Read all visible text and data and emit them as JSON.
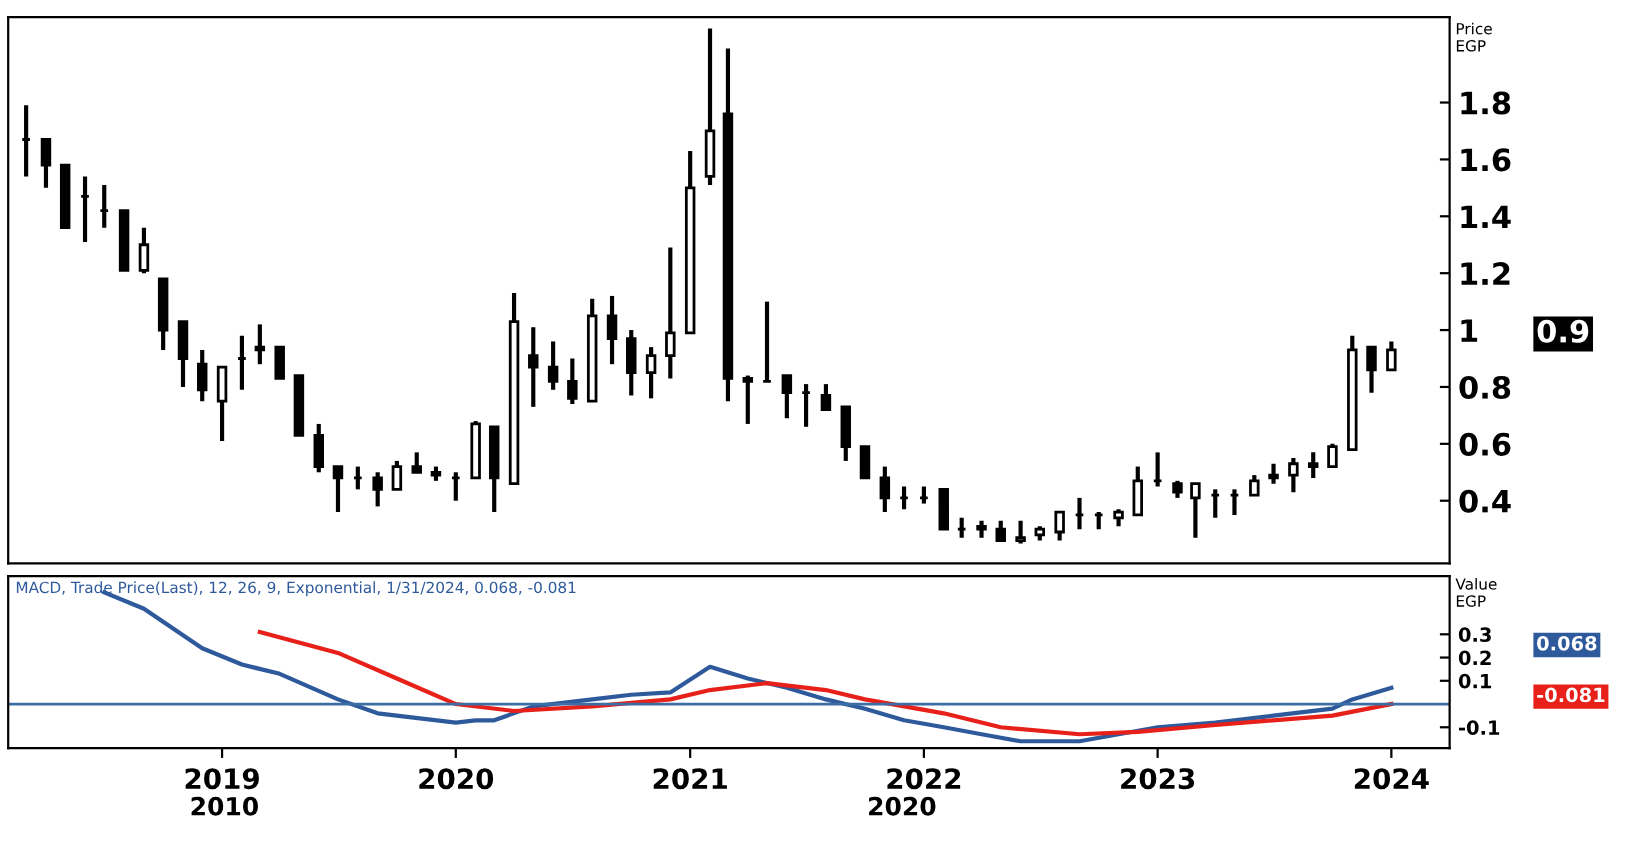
{
  "chart_data": [
    {
      "type": "candlestick",
      "ylabel": "Price EGP",
      "color": "#000000",
      "x": [
        "2018-03",
        "2018-04",
        "2018-05",
        "2018-06",
        "2018-07",
        "2018-08",
        "2018-09",
        "2018-10",
        "2018-11",
        "2018-12",
        "2019-01",
        "2019-02",
        "2019-03",
        "2019-04",
        "2019-05",
        "2019-06",
        "2019-07",
        "2019-08",
        "2019-09",
        "2019-10",
        "2019-11",
        "2019-12",
        "2020-01",
        "2020-02",
        "2020-03",
        "2020-04",
        "2020-05",
        "2020-06",
        "2020-07",
        "2020-08",
        "2020-09",
        "2020-10",
        "2020-11",
        "2020-12",
        "2021-01",
        "2021-02",
        "2021-03",
        "2021-04",
        "2021-05",
        "2021-06",
        "2021-07",
        "2021-08",
        "2021-09",
        "2021-10",
        "2021-11",
        "2021-12",
        "2022-01",
        "2022-02",
        "2022-03",
        "2022-04",
        "2022-05",
        "2022-06",
        "2022-07",
        "2022-08",
        "2022-09",
        "2022-10",
        "2022-11",
        "2022-12",
        "2023-01",
        "2023-02",
        "2023-03",
        "2023-04",
        "2023-05",
        "2023-06",
        "2023-07",
        "2023-08",
        "2023-09",
        "2023-10",
        "2023-11",
        "2023-12",
        "2024-01"
      ],
      "ohlc": [
        [
          1.67,
          1.79,
          1.54,
          1.67
        ],
        [
          1.67,
          1.67,
          1.5,
          1.58
        ],
        [
          1.58,
          1.58,
          1.36,
          1.36
        ],
        [
          1.47,
          1.54,
          1.31,
          1.47
        ],
        [
          1.42,
          1.51,
          1.36,
          1.42
        ],
        [
          1.42,
          1.42,
          1.21,
          1.21
        ],
        [
          1.21,
          1.36,
          1.2,
          1.3
        ],
        [
          1.18,
          1.18,
          0.93,
          1.0
        ],
        [
          1.03,
          1.03,
          0.8,
          0.9
        ],
        [
          0.88,
          0.93,
          0.75,
          0.79
        ],
        [
          0.75,
          0.87,
          0.61,
          0.87
        ],
        [
          0.9,
          0.98,
          0.79,
          0.9
        ],
        [
          0.93,
          1.02,
          0.88,
          0.94
        ],
        [
          0.94,
          0.94,
          0.83,
          0.83
        ],
        [
          0.84,
          0.84,
          0.63,
          0.63
        ],
        [
          0.63,
          0.67,
          0.5,
          0.52
        ],
        [
          0.52,
          0.52,
          0.36,
          0.48
        ],
        [
          0.48,
          0.52,
          0.44,
          0.48
        ],
        [
          0.48,
          0.5,
          0.38,
          0.44
        ],
        [
          0.44,
          0.54,
          0.44,
          0.52
        ],
        [
          0.52,
          0.57,
          0.5,
          0.5
        ],
        [
          0.5,
          0.52,
          0.47,
          0.49
        ],
        [
          0.48,
          0.5,
          0.4,
          0.48
        ],
        [
          0.48,
          0.68,
          0.48,
          0.67
        ],
        [
          0.66,
          0.66,
          0.36,
          0.48
        ],
        [
          0.46,
          1.13,
          0.46,
          1.03
        ],
        [
          0.91,
          1.01,
          0.73,
          0.87
        ],
        [
          0.87,
          0.96,
          0.79,
          0.82
        ],
        [
          0.82,
          0.9,
          0.74,
          0.76
        ],
        [
          0.75,
          1.11,
          0.75,
          1.05
        ],
        [
          1.05,
          1.12,
          0.88,
          0.97
        ],
        [
          0.97,
          1.0,
          0.77,
          0.85
        ],
        [
          0.85,
          0.94,
          0.76,
          0.91
        ],
        [
          0.91,
          1.29,
          0.83,
          0.99
        ],
        [
          0.99,
          1.63,
          0.99,
          1.5
        ],
        [
          1.54,
          2.06,
          1.51,
          1.7
        ],
        [
          1.76,
          1.99,
          0.75,
          0.83
        ],
        [
          0.83,
          0.84,
          0.67,
          0.82
        ],
        [
          0.82,
          1.1,
          0.82,
          0.82
        ],
        [
          0.84,
          0.84,
          0.69,
          0.78
        ],
        [
          0.78,
          0.81,
          0.66,
          0.78
        ],
        [
          0.77,
          0.81,
          0.72,
          0.72
        ],
        [
          0.73,
          0.73,
          0.54,
          0.59
        ],
        [
          0.59,
          0.59,
          0.48,
          0.48
        ],
        [
          0.48,
          0.52,
          0.36,
          0.41
        ],
        [
          0.41,
          0.45,
          0.37,
          0.41
        ],
        [
          0.41,
          0.45,
          0.39,
          0.41
        ],
        [
          0.44,
          0.44,
          0.3,
          0.3
        ],
        [
          0.3,
          0.34,
          0.27,
          0.3
        ],
        [
          0.3,
          0.33,
          0.27,
          0.31
        ],
        [
          0.3,
          0.33,
          0.26,
          0.26
        ],
        [
          0.26,
          0.33,
          0.25,
          0.27
        ],
        [
          0.28,
          0.31,
          0.26,
          0.3
        ],
        [
          0.29,
          0.36,
          0.26,
          0.36
        ],
        [
          0.35,
          0.41,
          0.3,
          0.35
        ],
        [
          0.35,
          0.36,
          0.3,
          0.35
        ],
        [
          0.34,
          0.37,
          0.31,
          0.36
        ],
        [
          0.35,
          0.52,
          0.35,
          0.47
        ],
        [
          0.47,
          0.57,
          0.45,
          0.47
        ],
        [
          0.46,
          0.47,
          0.41,
          0.43
        ],
        [
          0.41,
          0.46,
          0.27,
          0.46
        ],
        [
          0.42,
          0.44,
          0.34,
          0.42
        ],
        [
          0.42,
          0.44,
          0.35,
          0.42
        ],
        [
          0.42,
          0.49,
          0.42,
          0.47
        ],
        [
          0.48,
          0.53,
          0.46,
          0.49
        ],
        [
          0.49,
          0.55,
          0.43,
          0.53
        ],
        [
          0.53,
          0.57,
          0.48,
          0.52
        ],
        [
          0.52,
          0.6,
          0.52,
          0.59
        ],
        [
          0.58,
          0.98,
          0.58,
          0.93
        ],
        [
          0.94,
          0.94,
          0.78,
          0.86
        ],
        [
          0.86,
          0.96,
          0.86,
          0.93
        ]
      ],
      "xlim": [
        "2018-02",
        "2024-04"
      ],
      "ylim": [
        0.18,
        2.1
      ],
      "yticks": [
        1.8,
        1.6,
        1.4,
        1.2,
        1,
        0.8,
        0.6,
        0.4
      ],
      "tick_labels": "y",
      "annotations": [
        "0.9"
      ]
    },
    {
      "type": "line",
      "title": "MACD, Trade Price(Last), 12, 26, 9, Exponential, 1/31/2024, 0.068, -0.081",
      "ylabel": "Value EGP",
      "series": [
        {
          "color": "#2e5a9c",
          "x": [
            "2018-07",
            "2018-09",
            "2018-12",
            "2019-02",
            "2019-04",
            "2019-07",
            "2019-09",
            "2020-01",
            "2020-02",
            "2020-03",
            "2020-05",
            "2020-08",
            "2020-10",
            "2020-12",
            "2021-02",
            "2021-04",
            "2021-06",
            "2021-08",
            "2021-10",
            "2021-12",
            "2022-02",
            "2022-04",
            "2022-06",
            "2022-09",
            "2022-11",
            "2023-01",
            "2023-04",
            "2023-07",
            "2023-10",
            "2023-11",
            "2024-01"
          ],
          "values": [
            0.48,
            0.41,
            0.24,
            0.17,
            0.13,
            0.02,
            -0.04,
            -0.08,
            -0.07,
            -0.07,
            -0.01,
            0.02,
            0.04,
            0.05,
            0.16,
            0.11,
            0.07,
            0.02,
            -0.02,
            -0.07,
            -0.1,
            -0.13,
            -0.16,
            -0.16,
            -0.13,
            -0.1,
            -0.08,
            -0.05,
            -0.02,
            0.02,
            0.07
          ]
        },
        {
          "color": "#e8201a",
          "x": [
            "2019-03",
            "2019-07",
            "2019-10",
            "2020-01",
            "2020-04",
            "2020-08",
            "2020-12",
            "2021-02",
            "2021-05",
            "2021-08",
            "2021-10",
            "2022-02",
            "2022-05",
            "2022-09",
            "2022-12",
            "2023-04",
            "2023-10",
            "2024-01"
          ],
          "values": [
            0.31,
            0.22,
            0.11,
            0.0,
            -0.03,
            -0.01,
            0.02,
            0.06,
            0.09,
            0.06,
            0.02,
            -0.04,
            -0.1,
            -0.13,
            -0.12,
            -0.09,
            -0.05,
            0.0
          ]
        }
      ],
      "xlim": [
        "2018-02",
        "2024-04"
      ],
      "xticks": [
        {
          "value": "2019-01",
          "label": "2019"
        },
        {
          "value": "2020-01",
          "label": "2020"
        },
        {
          "value": "2021-01",
          "label": "2021"
        },
        {
          "value": "2022-01",
          "label": "2022"
        },
        {
          "value": "2023-01",
          "label": "2023"
        },
        {
          "value": "2024-01",
          "label": "2024"
        }
      ],
      "ylim": [
        -0.19,
        0.55
      ],
      "yticks": [
        0.3,
        0.2,
        0.1,
        -0.1
      ],
      "ref_lines": [
        {
          "axis": "y",
          "value": 0,
          "color": "#3a6ea5"
        }
      ],
      "annotations": [
        "2010",
        "2020",
        "0.068",
        "-0.081"
      ]
    }
  ]
}
